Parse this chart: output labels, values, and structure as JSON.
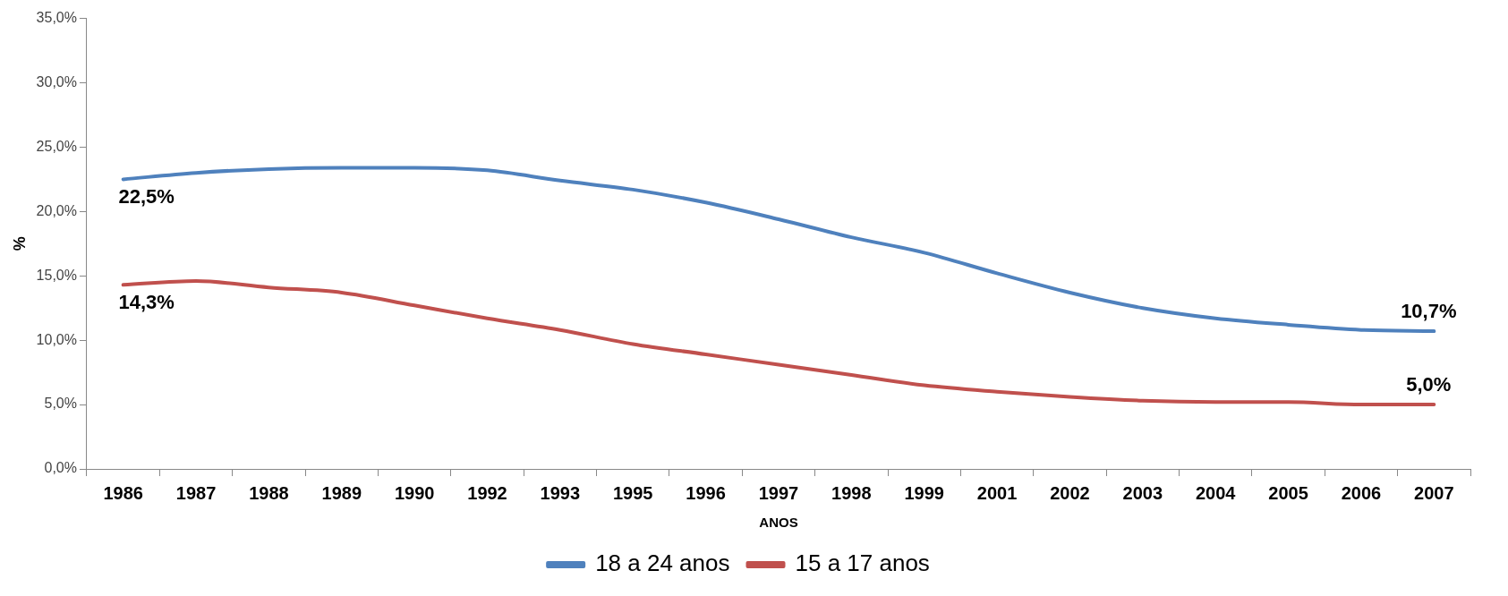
{
  "chart_data": {
    "type": "line",
    "xlabel": "ANOS",
    "ylabel": "%",
    "categories": [
      "1986",
      "1987",
      "1988",
      "1989",
      "1990",
      "1992",
      "1993",
      "1995",
      "1996",
      "1997",
      "1998",
      "1999",
      "2001",
      "2002",
      "2003",
      "2004",
      "2005",
      "2006",
      "2007"
    ],
    "series": [
      {
        "name": "18 a 24 anos",
        "color": "#4f81bd",
        "values": [
          22.5,
          23.0,
          23.3,
          23.4,
          23.4,
          23.2,
          22.4,
          21.7,
          20.7,
          19.4,
          18.0,
          16.8,
          15.2,
          13.7,
          12.5,
          11.7,
          11.2,
          10.8,
          10.7
        ],
        "value_labels": [
          "22,5%",
          null,
          null,
          null,
          null,
          null,
          null,
          null,
          null,
          null,
          null,
          null,
          null,
          null,
          null,
          null,
          null,
          null,
          "10,7%"
        ]
      },
      {
        "name": "15 a 17 anos",
        "color": "#c0504d",
        "values": [
          14.3,
          14.6,
          14.1,
          13.7,
          12.7,
          11.7,
          10.8,
          9.7,
          8.9,
          8.1,
          7.3,
          6.5,
          6.0,
          5.6,
          5.3,
          5.2,
          5.2,
          5.0,
          5.0
        ],
        "value_labels": [
          "14,3%",
          null,
          null,
          null,
          null,
          null,
          null,
          null,
          null,
          null,
          null,
          null,
          null,
          null,
          null,
          null,
          null,
          null,
          "5,0%"
        ]
      }
    ],
    "ylim": [
      0,
      35
    ],
    "yticks": [
      {
        "value": 0,
        "label": "0,0%"
      },
      {
        "value": 5,
        "label": "5,0%"
      },
      {
        "value": 10,
        "label": "10,0%"
      },
      {
        "value": 15,
        "label": "15,0%"
      },
      {
        "value": 20,
        "label": "20,0%"
      },
      {
        "value": 25,
        "label": "25,0%"
      },
      {
        "value": 30,
        "label": "30,0%"
      },
      {
        "value": 35,
        "label": "35,0%"
      }
    ],
    "grid": false,
    "legend": "bottom",
    "marker": "none",
    "line_style": "solid"
  }
}
